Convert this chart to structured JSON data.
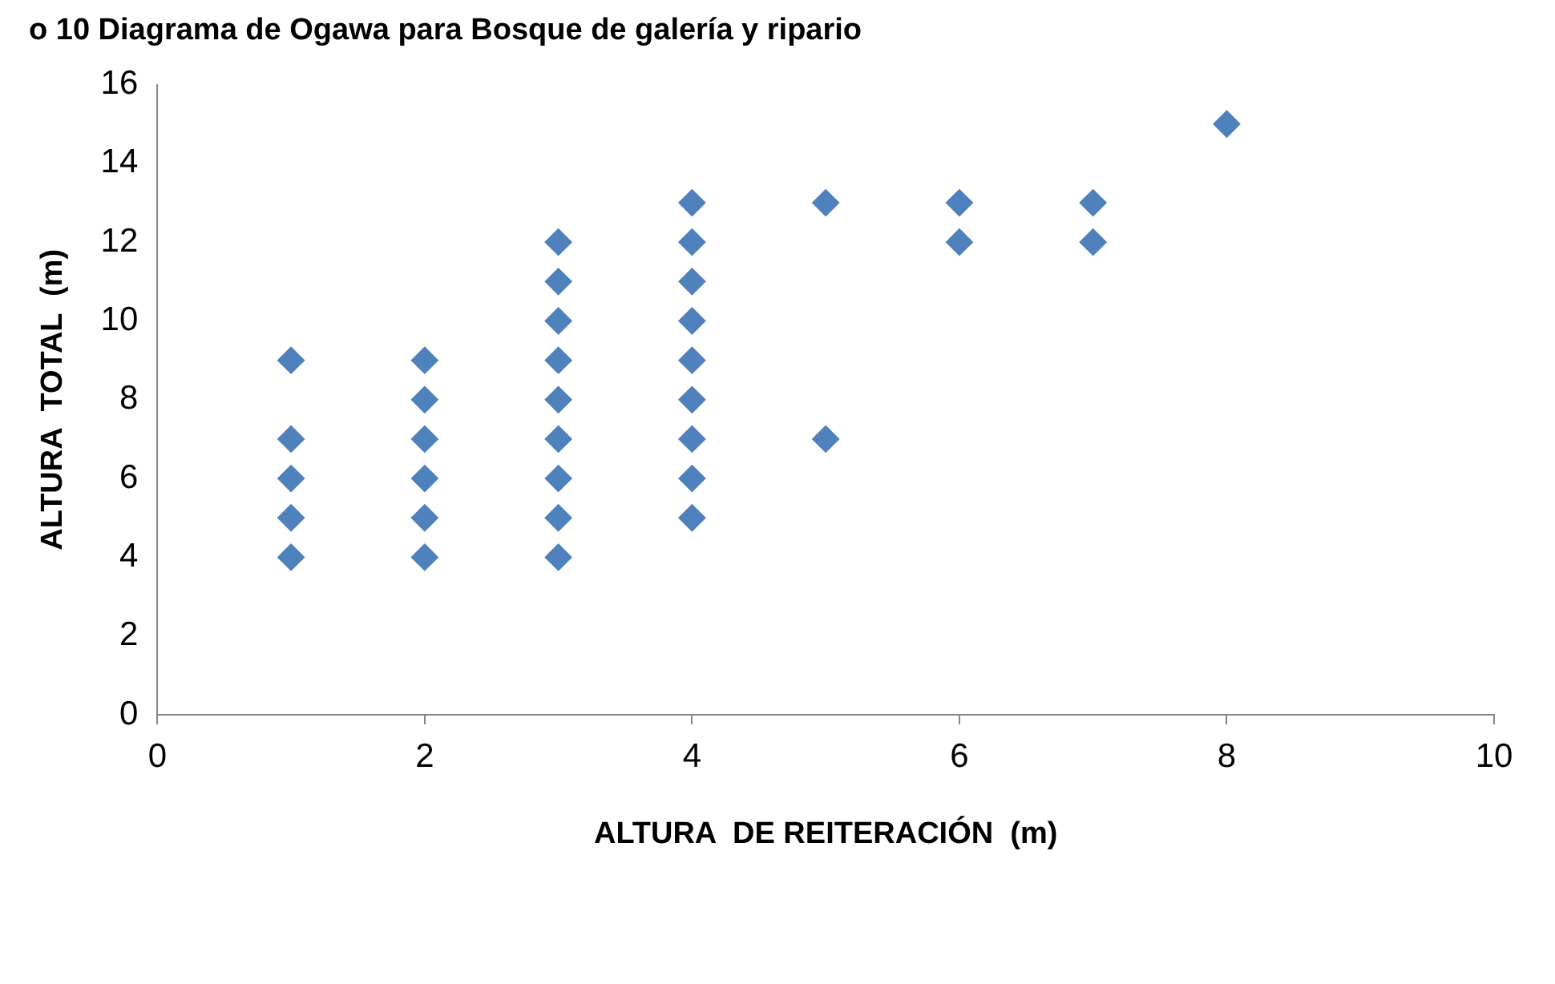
{
  "chart_data": {
    "type": "scatter",
    "title": "o 10 Diagrama de Ogawa para Bosque de galería y ripario",
    "xlabel": "ALTURA  DE REITERACIÓN  (m)",
    "ylabel": "ALTURA  TOTAL  (m)",
    "x": [
      1,
      1,
      1,
      1,
      1,
      2,
      2,
      2,
      2,
      2,
      2,
      3,
      3,
      3,
      3,
      3,
      3,
      3,
      3,
      3,
      4,
      4,
      4,
      4,
      4,
      4,
      4,
      4,
      4,
      5,
      5,
      6,
      6,
      7,
      7,
      8
    ],
    "values": [
      9,
      7,
      6,
      5,
      4,
      9,
      8,
      7,
      6,
      5,
      4,
      12,
      11,
      10,
      9,
      8,
      7,
      6,
      5,
      4,
      13,
      12,
      11,
      10,
      9,
      8,
      7,
      6,
      5,
      13,
      7,
      13,
      12,
      13,
      12,
      15
    ],
    "color": "#4f81bd",
    "marker": "diamond",
    "xlim": [
      0,
      10
    ],
    "xticks": [
      0,
      2,
      4,
      6,
      8,
      10
    ],
    "ylim": [
      0,
      16
    ],
    "yticks": [
      0,
      2,
      4,
      6,
      8,
      10,
      12,
      14,
      16
    ],
    "grid": false,
    "legend": false
  }
}
